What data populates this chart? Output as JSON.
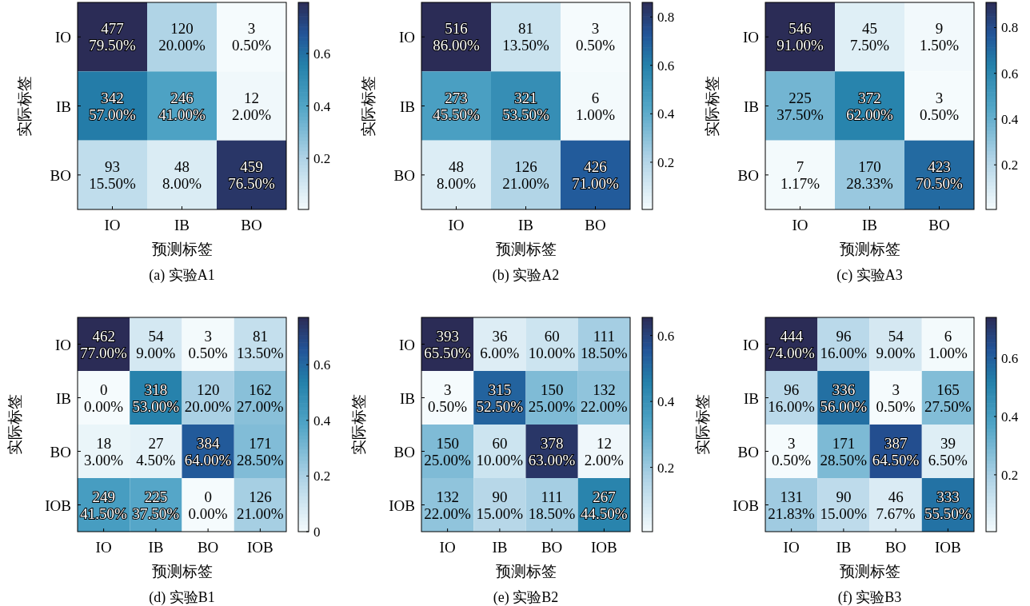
{
  "chart_data": [
    {
      "type": "heatmap",
      "title": "(a) 实验A1",
      "xlabel": "预测标签",
      "ylabel": "实际标签",
      "categories": [
        "IO",
        "IB",
        "BO"
      ],
      "y_categories": [
        "IO",
        "IB",
        "BO"
      ],
      "cells": [
        [
          0.795,
          0.2,
          0.005
        ],
        [
          0.57,
          0.41,
          0.02
        ],
        [
          0.155,
          0.08,
          0.765
        ]
      ],
      "cell_labels": [
        [
          "477\n79.50%",
          "120\n20.00%",
          "3\n0.50%"
        ],
        [
          "342\n57.00%",
          "246\n41.00%",
          "12\n2.00%"
        ],
        [
          "93\n15.50%",
          "48\n8.00%",
          "459\n76.50%"
        ]
      ],
      "clim": [
        0.005,
        0.795
      ],
      "cticks": [
        0.2,
        0.4,
        0.6
      ]
    },
    {
      "type": "heatmap",
      "title": "(b) 实验A2",
      "xlabel": "预测标签",
      "ylabel": "实际标签",
      "categories": [
        "IO",
        "IB",
        "BO"
      ],
      "y_categories": [
        "IO",
        "IB",
        "BO"
      ],
      "cells": [
        [
          0.86,
          0.135,
          0.005
        ],
        [
          0.455,
          0.535,
          0.01
        ],
        [
          0.08,
          0.21,
          0.71
        ]
      ],
      "cell_labels": [
        [
          "516\n86.00%",
          "81\n13.50%",
          "3\n0.50%"
        ],
        [
          "273\n45.50%",
          "321\n53.50%",
          "6\n1.00%"
        ],
        [
          "48\n8.00%",
          "126\n21.00%",
          "426\n71.00%"
        ]
      ],
      "clim": [
        0.005,
        0.86
      ],
      "cticks": [
        0.2,
        0.4,
        0.6,
        0.8
      ]
    },
    {
      "type": "heatmap",
      "title": "(c) 实验A3",
      "xlabel": "预测标签",
      "ylabel": "实际标签",
      "categories": [
        "IO",
        "IB",
        "BO"
      ],
      "y_categories": [
        "IO",
        "IB",
        "BO"
      ],
      "cells": [
        [
          0.91,
          0.075,
          0.015
        ],
        [
          0.375,
          0.62,
          0.005
        ],
        [
          0.0117,
          0.2833,
          0.705
        ]
      ],
      "cell_labels": [
        [
          "546\n91.00%",
          "45\n7.50%",
          "9\n1.50%"
        ],
        [
          "225\n37.50%",
          "372\n62.00%",
          "3\n0.50%"
        ],
        [
          "7\n1.17%",
          "170\n28.33%",
          "423\n70.50%"
        ]
      ],
      "clim": [
        0.005,
        0.91
      ],
      "cticks": [
        0.2,
        0.4,
        0.6,
        0.8
      ]
    },
    {
      "type": "heatmap",
      "title": "(d) 实验B1",
      "xlabel": "预测标签",
      "ylabel": "实际标签",
      "categories": [
        "IO",
        "IB",
        "BO",
        "IOB"
      ],
      "y_categories": [
        "IO",
        "IB",
        "BO",
        "IOB"
      ],
      "cells": [
        [
          0.77,
          0.09,
          0.005,
          0.135
        ],
        [
          0.0,
          0.53,
          0.2,
          0.27
        ],
        [
          0.03,
          0.045,
          0.64,
          0.285
        ],
        [
          0.415,
          0.375,
          0.0,
          0.21
        ]
      ],
      "cell_labels": [
        [
          "462\n77.00%",
          "54\n9.00%",
          "3\n0.50%",
          "81\n13.50%"
        ],
        [
          "0\n0.00%",
          "318\n53.00%",
          "120\n20.00%",
          "162\n27.00%"
        ],
        [
          "18\n3.00%",
          "27\n4.50%",
          "384\n64.00%",
          "171\n28.50%"
        ],
        [
          "249\n41.50%",
          "225\n37.50%",
          "0\n0.00%",
          "126\n21.00%"
        ]
      ],
      "clim": [
        0,
        0.77
      ],
      "cticks": [
        0,
        0.2,
        0.4,
        0.6
      ]
    },
    {
      "type": "heatmap",
      "title": "(e) 实验B2",
      "xlabel": "预测标签",
      "ylabel": "实际标签",
      "categories": [
        "IO",
        "IB",
        "BO",
        "IOB"
      ],
      "y_categories": [
        "IO",
        "IB",
        "BO",
        "IOB"
      ],
      "cells": [
        [
          0.655,
          0.06,
          0.1,
          0.185
        ],
        [
          0.005,
          0.525,
          0.25,
          0.22
        ],
        [
          0.25,
          0.1,
          0.63,
          0.02
        ],
        [
          0.22,
          0.15,
          0.185,
          0.445
        ]
      ],
      "cell_labels": [
        [
          "393\n65.50%",
          "36\n6.00%",
          "60\n10.00%",
          "111\n18.50%"
        ],
        [
          "3\n0.50%",
          "315\n52.50%",
          "150\n25.00%",
          "132\n22.00%"
        ],
        [
          "150\n25.00%",
          "60\n10.00%",
          "378\n63.00%",
          "12\n2.00%"
        ],
        [
          "132\n22.00%",
          "90\n15.00%",
          "111\n18.50%",
          "267\n44.50%"
        ]
      ],
      "clim": [
        0.005,
        0.655
      ],
      "cticks": [
        0.2,
        0.4,
        0.6
      ]
    },
    {
      "type": "heatmap",
      "title": "(f) 实验B3",
      "xlabel": "预测标签",
      "ylabel": "实际标签",
      "categories": [
        "IO",
        "IB",
        "BO",
        "IOB"
      ],
      "y_categories": [
        "IO",
        "IB",
        "BO",
        "IOB"
      ],
      "cells": [
        [
          0.74,
          0.16,
          0.09,
          0.01
        ],
        [
          0.16,
          0.56,
          0.005,
          0.275
        ],
        [
          0.005,
          0.285,
          0.645,
          0.065
        ],
        [
          0.2183,
          0.15,
          0.0767,
          0.555
        ]
      ],
      "cell_labels": [
        [
          "444\n74.00%",
          "96\n16.00%",
          "54\n9.00%",
          "6\n1.00%"
        ],
        [
          "96\n16.00%",
          "336\n56.00%",
          "3\n0.50%",
          "165\n27.50%"
        ],
        [
          "3\n0.50%",
          "171\n28.50%",
          "387\n64.50%",
          "39\n6.50%"
        ],
        [
          "131\n21.83%",
          "90\n15.00%",
          "46\n7.67%",
          "333\n55.50%"
        ]
      ],
      "clim": [
        0.005,
        0.74
      ],
      "cticks": [
        0.2,
        0.4,
        0.6
      ]
    }
  ]
}
